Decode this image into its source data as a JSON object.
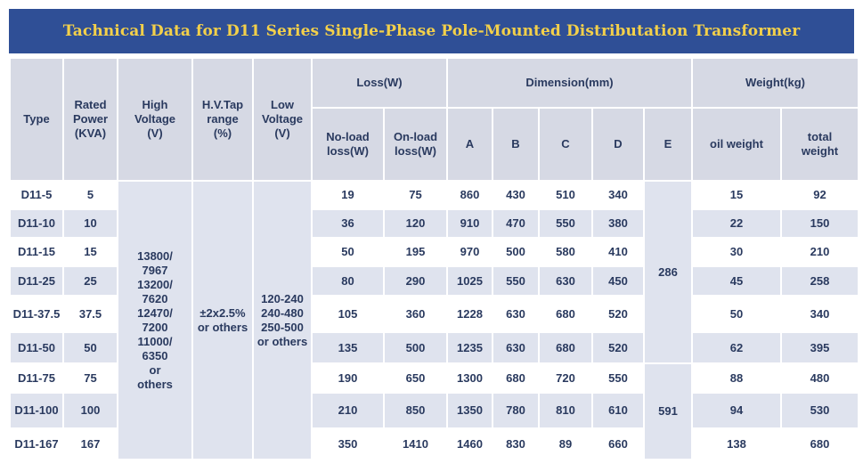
{
  "title": "Tachnical Data for D11 Series Single-Phase Pole-Mounted Distributation Transformer",
  "headers": {
    "type": "Type",
    "rated_power": "Rated\nPower\n(KVA)",
    "high_voltage": "High\nVoltage\n(V)",
    "hv_tap": "H.V.Tap\nrange\n(%)",
    "low_voltage": "Low\nVoltage\n(V)",
    "loss": "Loss(W)",
    "dimension": "Dimension(mm)",
    "weight": "Weight(kg)",
    "noload": "No-load\nloss(W)",
    "onload": "On-load\nloss(W)",
    "a": "A",
    "b": "B",
    "c": "C",
    "d": "D",
    "e": "E",
    "oil_weight": "oil weight",
    "total_weight": "total\nweight"
  },
  "merged": {
    "high_voltage": "13800/\n7967\n13200/\n7620\n12470/\n7200\n11000/\n6350\nor\nothers",
    "hv_tap": "±2x2.5%\nor others",
    "low_voltage": "120-240\n240-480\n250-500\nor others",
    "e_top": "286",
    "e_bottom": "591"
  },
  "rows": [
    {
      "type": "D11-5",
      "power": "5",
      "noload": "19",
      "onload": "75",
      "a": "860",
      "b": "430",
      "c": "510",
      "d": "340",
      "oil": "15",
      "total": "92"
    },
    {
      "type": "D11-10",
      "power": "10",
      "noload": "36",
      "onload": "120",
      "a": "910",
      "b": "470",
      "c": "550",
      "d": "380",
      "oil": "22",
      "total": "150"
    },
    {
      "type": "D11-15",
      "power": "15",
      "noload": "50",
      "onload": "195",
      "a": "970",
      "b": "500",
      "c": "580",
      "d": "410",
      "oil": "30",
      "total": "210"
    },
    {
      "type": "D11-25",
      "power": "25",
      "noload": "80",
      "onload": "290",
      "a": "1025",
      "b": "550",
      "c": "630",
      "d": "450",
      "oil": "45",
      "total": "258"
    },
    {
      "type": "D11-37.5",
      "power": "37.5",
      "noload": "105",
      "onload": "360",
      "a": "1228",
      "b": "630",
      "c": "680",
      "d": "520",
      "oil": "50",
      "total": "340"
    },
    {
      "type": "D11-50",
      "power": "50",
      "noload": "135",
      "onload": "500",
      "a": "1235",
      "b": "630",
      "c": "680",
      "d": "520",
      "oil": "62",
      "total": "395"
    },
    {
      "type": "D11-75",
      "power": "75",
      "noload": "190",
      "onload": "650",
      "a": "1300",
      "b": "680",
      "c": "720",
      "d": "550",
      "oil": "88",
      "total": "480"
    },
    {
      "type": "D11-100",
      "power": "100",
      "noload": "210",
      "onload": "850",
      "a": "1350",
      "b": "780",
      "c": "810",
      "d": "610",
      "oil": "94",
      "total": "530"
    },
    {
      "type": "D11-167",
      "power": "167",
      "noload": "350",
      "onload": "1410",
      "a": "1460",
      "b": "830",
      "c": "89",
      "d": "660",
      "oil": "138",
      "total": "680"
    }
  ]
}
